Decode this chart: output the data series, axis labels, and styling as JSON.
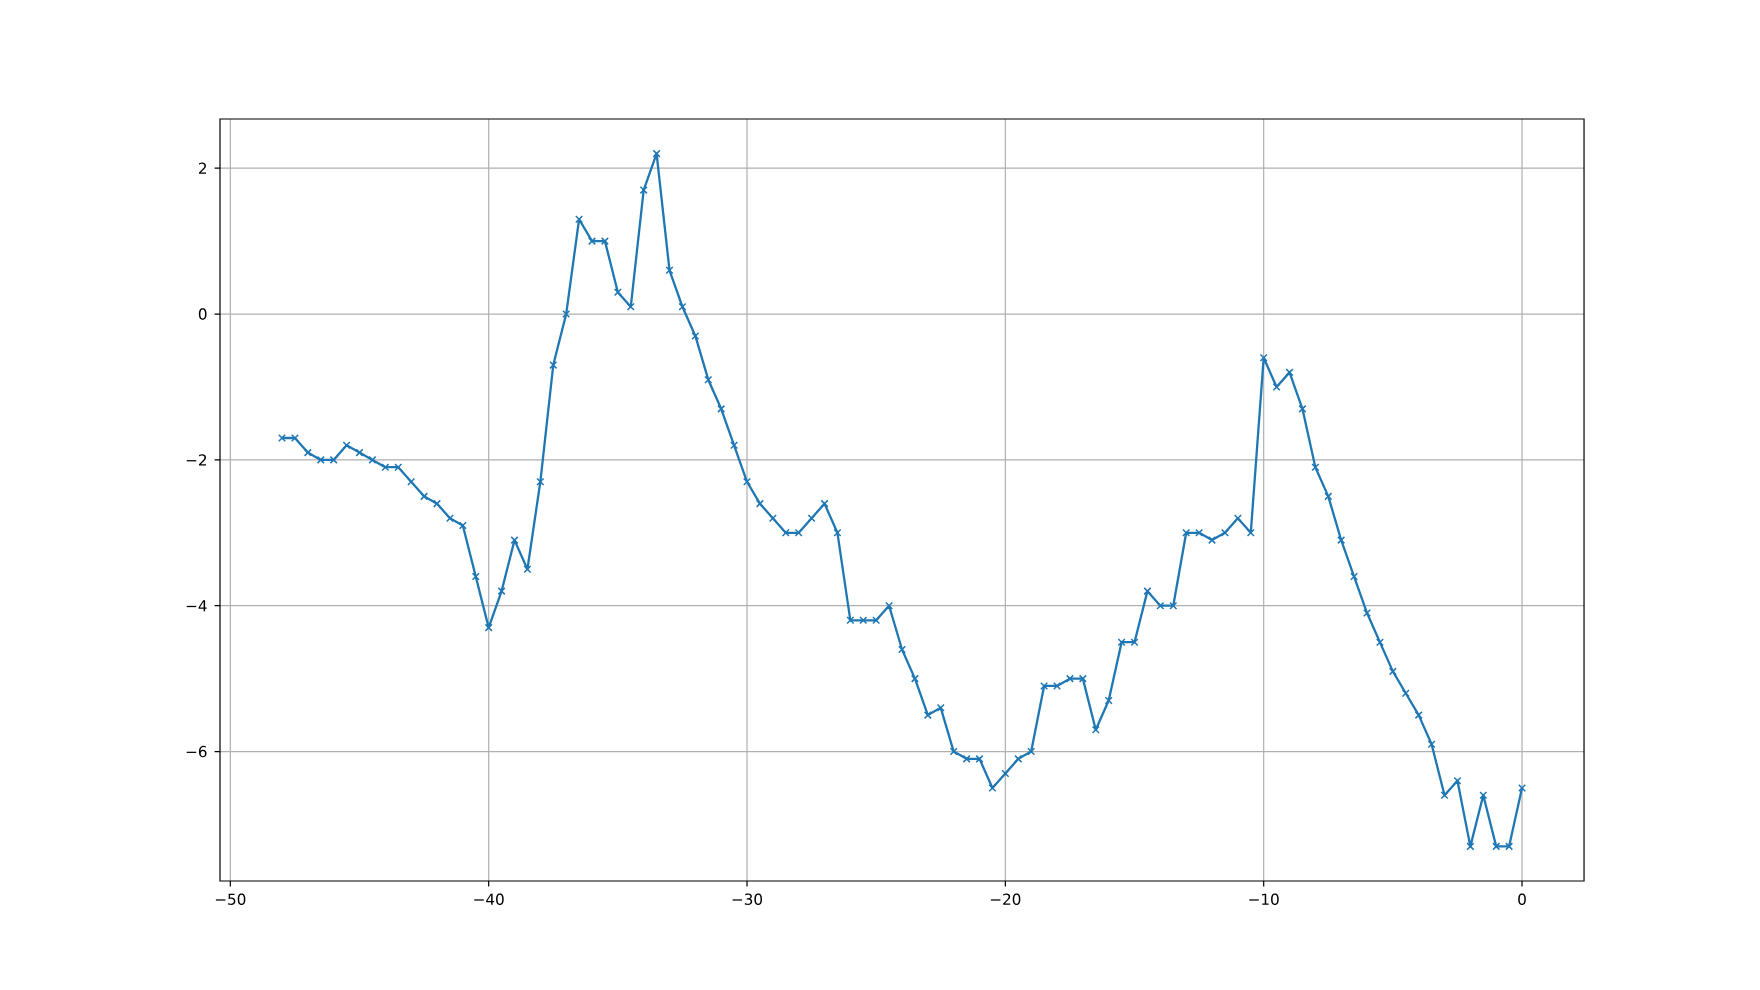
{
  "chart_data": {
    "type": "line",
    "x": [
      -48,
      -47.5,
      -47,
      -46.5,
      -46,
      -45.5,
      -45,
      -44.5,
      -44,
      -43.5,
      -43,
      -42.5,
      -42,
      -41.5,
      -41,
      -40.5,
      -40,
      -39.5,
      -39,
      -38.5,
      -38,
      -37.5,
      -37,
      -36.5,
      -36,
      -35.5,
      -35,
      -34.5,
      -34,
      -33.5,
      -33,
      -32.5,
      -32,
      -31.5,
      -31,
      -30.5,
      -30,
      -29.5,
      -29,
      -28.5,
      -28,
      -27.5,
      -27,
      -26.5,
      -26,
      -25.5,
      -25,
      -24.5,
      -24,
      -23.5,
      -23,
      -22.5,
      -22,
      -21.5,
      -21,
      -20.5,
      -20,
      -19.5,
      -19,
      -18.5,
      -18,
      -17.5,
      -17,
      -16.5,
      -16,
      -15.5,
      -15,
      -14.5,
      -14,
      -13.5,
      -13,
      -12.5,
      -12,
      -11.5,
      -11,
      -10.5,
      -10,
      -9.5,
      -9,
      -8.5,
      -8,
      -7.5,
      -7,
      -6.5,
      -6,
      -5.5,
      -5,
      -4.5,
      -4,
      -3.5,
      -3,
      -2.5,
      -2,
      -1.5,
      -1,
      -0.5,
      0
    ],
    "series": [
      {
        "color": "#1f77b4",
        "values": [
          -1.7,
          -1.7,
          -1.9,
          -2.0,
          -2.0,
          -1.8,
          -1.9,
          -2.0,
          -2.1,
          -2.1,
          -2.3,
          -2.5,
          -2.6,
          -2.8,
          -2.9,
          -3.6,
          -4.3,
          -3.8,
          -3.1,
          -3.5,
          -2.3,
          -0.7,
          0.0,
          1.3,
          1.0,
          1.0,
          0.3,
          0.1,
          1.7,
          2.2,
          0.6,
          0.1,
          -0.3,
          -0.9,
          -1.3,
          -1.8,
          -2.3,
          -2.6,
          -2.8,
          -3.0,
          -3.0,
          -2.8,
          -2.6,
          -3.0,
          -4.2,
          -4.2,
          -4.2,
          -4.0,
          -4.6,
          -5.0,
          -5.5,
          -5.4,
          -6.0,
          -6.1,
          -6.1,
          -6.5,
          -6.3,
          -6.1,
          -6.0,
          -5.1,
          -5.1,
          -5.0,
          -5.0,
          -5.7,
          -5.3,
          -4.5,
          -4.5,
          -3.8,
          -4.0,
          -4.0,
          -3.0,
          -3.0,
          -3.1,
          -3.0,
          -2.8,
          -3.0,
          -0.6,
          -1.0,
          -0.8,
          -1.3,
          -2.1,
          -2.5,
          -3.1,
          -3.6,
          -4.1,
          -4.5,
          -4.9,
          -5.2,
          -5.5,
          -5.9,
          -6.6,
          -6.4,
          -7.3,
          -6.6,
          -7.3,
          -7.3,
          -6.5
        ]
      }
    ],
    "xlim": [
      -50.4,
      2.4
    ],
    "ylim": [
      -7.775,
      2.675
    ],
    "xticks": [
      {
        "value": -50,
        "label": "−50"
      },
      {
        "value": -40,
        "label": "−40"
      },
      {
        "value": -30,
        "label": "−30"
      },
      {
        "value": -20,
        "label": "−20"
      },
      {
        "value": -10,
        "label": "−10"
      },
      0
    ],
    "yticks": [
      {
        "value": -6,
        "label": "−6"
      },
      {
        "value": -4,
        "label": "−4"
      },
      {
        "value": -2,
        "label": "−2"
      },
      0,
      2
    ],
    "grid": true,
    "marker": "cross",
    "line_style": "solid"
  }
}
